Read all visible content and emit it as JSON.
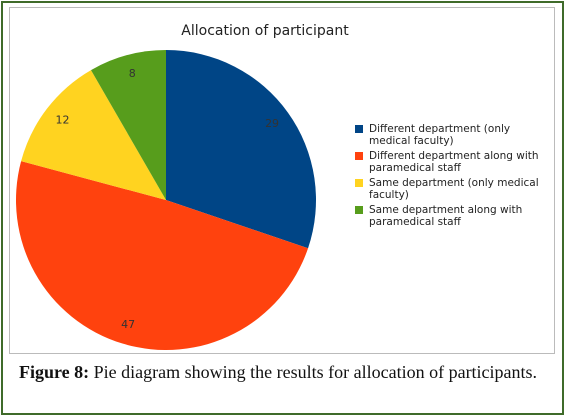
{
  "chart_data": {
    "type": "pie",
    "title": "Allocation of participant",
    "categories": [
      "Different department (only medical faculty)",
      "Different department along with paramedical staff",
      "Same department (only medical faculty)",
      "Same department along with paramedical staff"
    ],
    "values": [
      29,
      47,
      12,
      8
    ],
    "colors": [
      "#004586",
      "#ff420e",
      "#ffd320",
      "#579d1c"
    ],
    "legend": "right"
  },
  "caption": {
    "label": "Figure 8:",
    "text": "Pie diagram showing the results for allocation of participants."
  }
}
